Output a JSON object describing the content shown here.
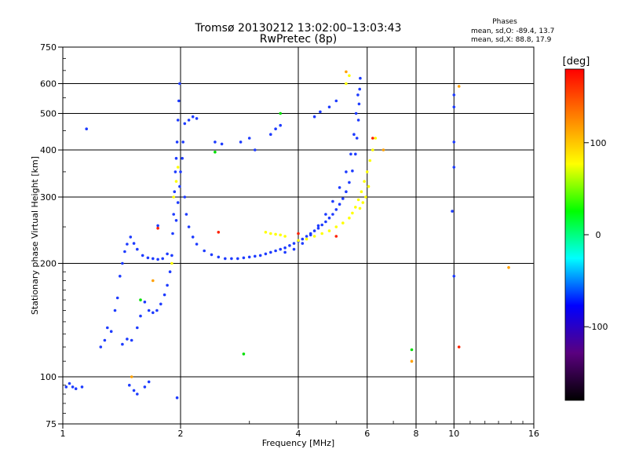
{
  "chart_data": {
    "type": "scatter",
    "title": "Tromsø 20130212 13:02:00–13:03:43",
    "subtitle": "RwPretec (8p)",
    "xlabel": "Frequency [MHz]",
    "ylabel": "Stationary phase Virtual Height [km]",
    "xscale": "log",
    "yscale": "log",
    "xlim": [
      1,
      16
    ],
    "ylim": [
      75,
      750
    ],
    "x_ticks": [
      1,
      2,
      4,
      6,
      8,
      10,
      16
    ],
    "x_tick_labels": [
      "1",
      "2",
      "4",
      "6",
      "8",
      "10",
      "16"
    ],
    "y_ticks": [
      75,
      100,
      200,
      300,
      400,
      500,
      600,
      750
    ],
    "y_tick_labels": [
      "75",
      "100",
      "200",
      "300",
      "400",
      "500",
      "600",
      "750"
    ],
    "grid": true,
    "phase_info": {
      "title": "Phases",
      "line_o": "mean, sd,O: -89.4, 13.7",
      "line_x": "mean, sd,X:  88.8, 17.9"
    },
    "colorbar": {
      "label": "[deg]",
      "range": [
        -180,
        180
      ],
      "ticks": [
        100,
        0,
        -100
      ],
      "tick_labels": [
        "100",
        "0",
        "-100"
      ],
      "colormap": [
        "#000000",
        "#5a007f",
        "#0000ff",
        "#00ffff",
        "#00ff00",
        "#ffff00",
        "#ff8000",
        "#ff0000"
      ]
    },
    "series": [
      {
        "mode": "O",
        "phase_deg": -95,
        "color": "#1e3cff",
        "points": [
          [
            1.02,
            94
          ],
          [
            1.04,
            96
          ],
          [
            1.06,
            94
          ],
          [
            1.08,
            93
          ],
          [
            1.12,
            94
          ],
          [
            1.25,
            120
          ],
          [
            1.28,
            125
          ],
          [
            1.3,
            135
          ],
          [
            1.33,
            132
          ],
          [
            1.36,
            150
          ],
          [
            1.38,
            162
          ],
          [
            1.4,
            185
          ],
          [
            1.42,
            200
          ],
          [
            1.44,
            215
          ],
          [
            1.46,
            225
          ],
          [
            1.49,
            235
          ],
          [
            1.52,
            226
          ],
          [
            1.55,
            218
          ],
          [
            1.6,
            210
          ],
          [
            1.65,
            207
          ],
          [
            1.7,
            206
          ],
          [
            1.75,
            205
          ],
          [
            1.8,
            206
          ],
          [
            1.85,
            212
          ],
          [
            1.42,
            122
          ],
          [
            1.46,
            126
          ],
          [
            1.5,
            125
          ],
          [
            1.55,
            135
          ],
          [
            1.58,
            145
          ],
          [
            1.62,
            158
          ],
          [
            1.66,
            150
          ],
          [
            1.7,
            148
          ],
          [
            1.74,
            150
          ],
          [
            1.78,
            156
          ],
          [
            1.82,
            165
          ],
          [
            1.85,
            175
          ],
          [
            1.88,
            190
          ],
          [
            1.9,
            210
          ],
          [
            1.91,
            240
          ],
          [
            1.92,
            270
          ],
          [
            1.93,
            310
          ],
          [
            1.94,
            350
          ],
          [
            1.95,
            380
          ],
          [
            1.96,
            420
          ],
          [
            1.97,
            480
          ],
          [
            1.98,
            540
          ],
          [
            1.99,
            600
          ],
          [
            1.95,
            260
          ],
          [
            1.97,
            290
          ],
          [
            1.99,
            320
          ],
          [
            2.0,
            350
          ],
          [
            2.02,
            380
          ],
          [
            2.03,
            420
          ],
          [
            2.05,
            300
          ],
          [
            2.07,
            270
          ],
          [
            2.1,
            250
          ],
          [
            2.15,
            235
          ],
          [
            2.2,
            225
          ],
          [
            2.3,
            216
          ],
          [
            2.4,
            211
          ],
          [
            2.5,
            208
          ],
          [
            2.6,
            206
          ],
          [
            2.7,
            206
          ],
          [
            2.8,
            206
          ],
          [
            2.9,
            207
          ],
          [
            3.0,
            208
          ],
          [
            3.1,
            209
          ],
          [
            3.2,
            210
          ],
          [
            3.3,
            212
          ],
          [
            3.4,
            214
          ],
          [
            3.5,
            216
          ],
          [
            3.6,
            218
          ],
          [
            3.7,
            220
          ],
          [
            3.8,
            223
          ],
          [
            3.9,
            226
          ],
          [
            4.0,
            229
          ],
          [
            4.1,
            232
          ],
          [
            4.2,
            236
          ],
          [
            4.3,
            240
          ],
          [
            4.4,
            244
          ],
          [
            4.5,
            248
          ],
          [
            4.6,
            253
          ],
          [
            4.7,
            258
          ],
          [
            4.8,
            264
          ],
          [
            4.9,
            270
          ],
          [
            5.0,
            278
          ],
          [
            5.1,
            287
          ],
          [
            5.2,
            297
          ],
          [
            5.3,
            310
          ],
          [
            5.4,
            328
          ],
          [
            5.5,
            352
          ],
          [
            5.6,
            390
          ],
          [
            5.65,
            430
          ],
          [
            5.7,
            480
          ],
          [
            5.72,
            530
          ],
          [
            5.74,
            580
          ],
          [
            5.76,
            620
          ],
          [
            3.7,
            214
          ],
          [
            3.9,
            218
          ],
          [
            4.1,
            226
          ],
          [
            4.3,
            238
          ],
          [
            4.5,
            252
          ],
          [
            4.7,
            270
          ],
          [
            4.9,
            292
          ],
          [
            5.1,
            318
          ],
          [
            5.3,
            350
          ],
          [
            5.45,
            390
          ],
          [
            5.55,
            440
          ],
          [
            5.62,
            500
          ],
          [
            5.68,
            560
          ],
          [
            2.05,
            470
          ],
          [
            2.1,
            480
          ],
          [
            2.15,
            490
          ],
          [
            2.2,
            485
          ],
          [
            2.45,
            420
          ],
          [
            2.55,
            415
          ],
          [
            2.85,
            420
          ],
          [
            3.0,
            430
          ],
          [
            3.1,
            400
          ],
          [
            3.4,
            440
          ],
          [
            3.5,
            455
          ],
          [
            3.6,
            465
          ],
          [
            4.4,
            490
          ],
          [
            4.55,
            505
          ],
          [
            4.8,
            520
          ],
          [
            5.0,
            540
          ],
          [
            1.48,
            95
          ],
          [
            1.52,
            92
          ],
          [
            1.55,
            90
          ],
          [
            1.62,
            94
          ],
          [
            1.66,
            97
          ],
          [
            1.96,
            88
          ],
          [
            10.0,
            185
          ],
          [
            10.0,
            360
          ],
          [
            10.0,
            420
          ],
          [
            10.0,
            520
          ],
          [
            10.0,
            560
          ],
          [
            9.9,
            275
          ],
          [
            1.15,
            455
          ],
          [
            1.75,
            252
          ]
        ]
      },
      {
        "mode": "X",
        "phase_deg": 95,
        "color": "#ffff00",
        "points": [
          [
            3.3,
            242
          ],
          [
            3.4,
            240
          ],
          [
            3.5,
            239
          ],
          [
            3.6,
            238
          ],
          [
            3.7,
            236
          ],
          [
            4.0,
            230
          ],
          [
            4.2,
            232
          ],
          [
            4.4,
            236
          ],
          [
            4.6,
            240
          ],
          [
            4.8,
            244
          ],
          [
            5.0,
            250
          ],
          [
            5.2,
            256
          ],
          [
            5.4,
            264
          ],
          [
            5.5,
            272
          ],
          [
            5.6,
            282
          ],
          [
            5.7,
            295
          ],
          [
            5.8,
            310
          ],
          [
            5.9,
            330
          ],
          [
            6.0,
            350
          ],
          [
            6.1,
            375
          ],
          [
            6.2,
            400
          ],
          [
            6.3,
            430
          ],
          [
            5.75,
            280
          ],
          [
            5.85,
            290
          ],
          [
            5.95,
            300
          ],
          [
            6.05,
            320
          ],
          [
            5.3,
            600
          ],
          [
            5.4,
            630
          ],
          [
            1.9,
            200
          ],
          [
            1.92,
            300
          ],
          [
            1.95,
            330
          ],
          [
            1.97,
            360
          ]
        ]
      },
      {
        "mode": "other",
        "phase_deg": 170,
        "color": "#ff2000",
        "points": [
          [
            1.75,
            248
          ],
          [
            2.5,
            242
          ],
          [
            4.0,
            240
          ],
          [
            5.0,
            236
          ],
          [
            6.2,
            430
          ],
          [
            10.3,
            120
          ]
        ]
      },
      {
        "mode": "other",
        "phase_deg": 40,
        "color": "#00e000",
        "points": [
          [
            2.45,
            395
          ],
          [
            2.9,
            115
          ],
          [
            1.58,
            160
          ],
          [
            3.6,
            500
          ],
          [
            7.8,
            118
          ]
        ]
      },
      {
        "mode": "other",
        "phase_deg": 110,
        "color": "#ffa000",
        "points": [
          [
            1.7,
            180
          ],
          [
            5.3,
            645
          ],
          [
            6.6,
            400
          ],
          [
            10.3,
            590
          ],
          [
            13.8,
            195
          ],
          [
            7.8,
            110
          ],
          [
            1.5,
            100
          ]
        ]
      }
    ]
  }
}
